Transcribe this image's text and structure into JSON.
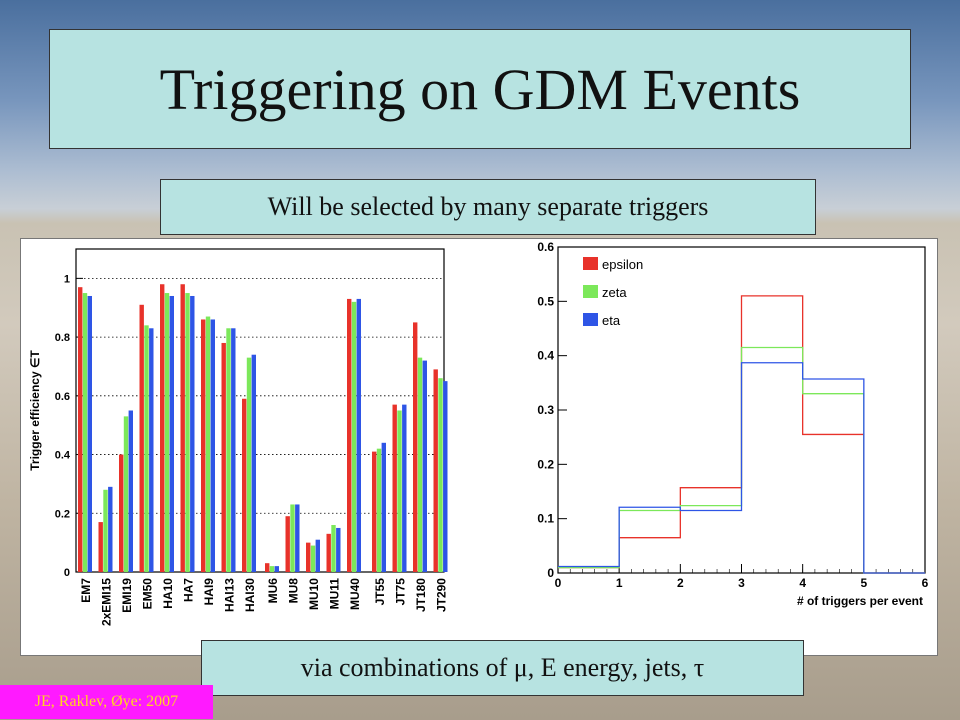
{
  "slide": {
    "title": "Triggering on GDM Events",
    "caption_top": "Will be selected by many separate triggers",
    "caption_bottom": "via combinations of μ, E energy, jets, τ",
    "credit": "JE, Raklev, Øye: 2007"
  },
  "colors": {
    "title_box": "#b7e3e1",
    "credit_bg": "#ff1aff",
    "credit_text": "#ffd61e",
    "epsilon": "#e8322a",
    "zeta": "#7ce85a",
    "eta": "#2e55e6"
  },
  "chart_data": [
    {
      "type": "bar",
      "ylabel": "Trigger efficiency ∈T",
      "ylim": [
        0,
        1.1
      ],
      "yticks": [
        0,
        0.2,
        0.4,
        0.6,
        0.8,
        1
      ],
      "grid": "y dotted",
      "categories": [
        "EM7",
        "2xEMI15",
        "EMI19",
        "EM50",
        "HA10",
        "HA7",
        "HAI9",
        "HAI13",
        "HAI30",
        "MU6",
        "MU8",
        "MU10",
        "MU11",
        "MU40",
        "JT55",
        "JT75",
        "JT180",
        "JT290"
      ],
      "groups": [
        [
          0,
          1,
          2,
          3
        ],
        [
          4,
          5,
          6,
          7,
          8
        ],
        [
          9,
          10,
          11,
          12,
          13
        ],
        [
          14,
          15,
          16,
          17
        ]
      ],
      "series": [
        {
          "values": [
            0.97,
            0.17,
            0.4,
            0.91,
            0.98,
            0.98,
            0.86,
            0.78,
            0.59,
            0.03,
            0.19,
            0.1,
            0.13,
            0.93,
            0.41,
            0.57,
            0.85,
            0.69
          ]
        },
        {
          "values": [
            0.95,
            0.28,
            0.53,
            0.84,
            0.95,
            0.95,
            0.87,
            0.83,
            0.73,
            0.02,
            0.23,
            0.09,
            0.16,
            0.92,
            0.42,
            0.55,
            0.73,
            0.66
          ]
        },
        {
          "values": [
            0.94,
            0.29,
            0.55,
            0.83,
            0.94,
            0.94,
            0.86,
            0.83,
            0.74,
            0.02,
            0.23,
            0.11,
            0.15,
            0.93,
            0.44,
            0.57,
            0.72,
            0.65
          ]
        }
      ]
    },
    {
      "type": "line",
      "xlabel": "# of triggers per event",
      "xlim": [
        0,
        6
      ],
      "ylim": [
        0,
        0.6
      ],
      "xticks": [
        0,
        1,
        2,
        3,
        4,
        5,
        6
      ],
      "yticks": [
        0,
        0.1,
        0.2,
        0.3,
        0.4,
        0.5,
        0.6
      ],
      "legend": "top-left",
      "bin_edges": [
        0,
        1,
        2,
        3,
        4,
        5,
        6
      ],
      "series": [
        {
          "name": "epsilon",
          "values": [
            0.01,
            0.065,
            0.157,
            0.51,
            0.255,
            0
          ]
        },
        {
          "name": "zeta",
          "values": [
            0.01,
            0.115,
            0.124,
            0.415,
            0.33,
            0
          ]
        },
        {
          "name": "eta",
          "values": [
            0.012,
            0.121,
            0.115,
            0.387,
            0.357,
            0
          ]
        }
      ]
    }
  ]
}
